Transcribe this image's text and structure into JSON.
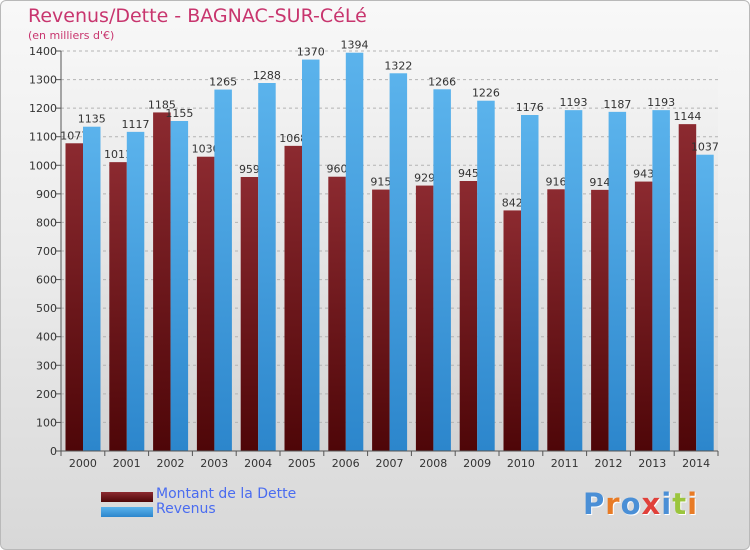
{
  "chart_data": {
    "type": "bar",
    "title": "Revenus/Dette - BAGNAC-SUR-CéLé",
    "subtitle": "(en milliers d'€)",
    "categories": [
      "2000",
      "2001",
      "2002",
      "2003",
      "2004",
      "2005",
      "2006",
      "2007",
      "2008",
      "2009",
      "2010",
      "2011",
      "2012",
      "2013",
      "2014"
    ],
    "series": [
      {
        "name": "Montant de la Dette",
        "color": "#7a1e24",
        "values": [
          1077,
          1011,
          1185,
          1030,
          959,
          1068,
          960,
          915,
          929,
          945,
          842,
          916,
          914,
          943,
          1144
        ]
      },
      {
        "name": "Revenus",
        "color": "#3d9ee0",
        "values": [
          1135,
          1117,
          1155,
          1265,
          1288,
          1370,
          1394,
          1322,
          1266,
          1226,
          1176,
          1193,
          1187,
          1193,
          1037
        ]
      }
    ],
    "ylim": [
      0,
      1400
    ],
    "yticks": [
      0,
      100,
      200,
      300,
      400,
      500,
      600,
      700,
      800,
      900,
      1000,
      1100,
      1200,
      1300,
      1400
    ],
    "grid": true,
    "legend": "bottom-left"
  },
  "logo": {
    "text": "Proxiti",
    "letters": [
      "P",
      "r",
      "o",
      "x",
      "i",
      "t",
      "i"
    ],
    "colors": [
      "#4a8fd6",
      "#e87b25",
      "#4a8fd6",
      "#e0403a",
      "#4a8fd6",
      "#9bc53d",
      "#e87b25"
    ]
  }
}
